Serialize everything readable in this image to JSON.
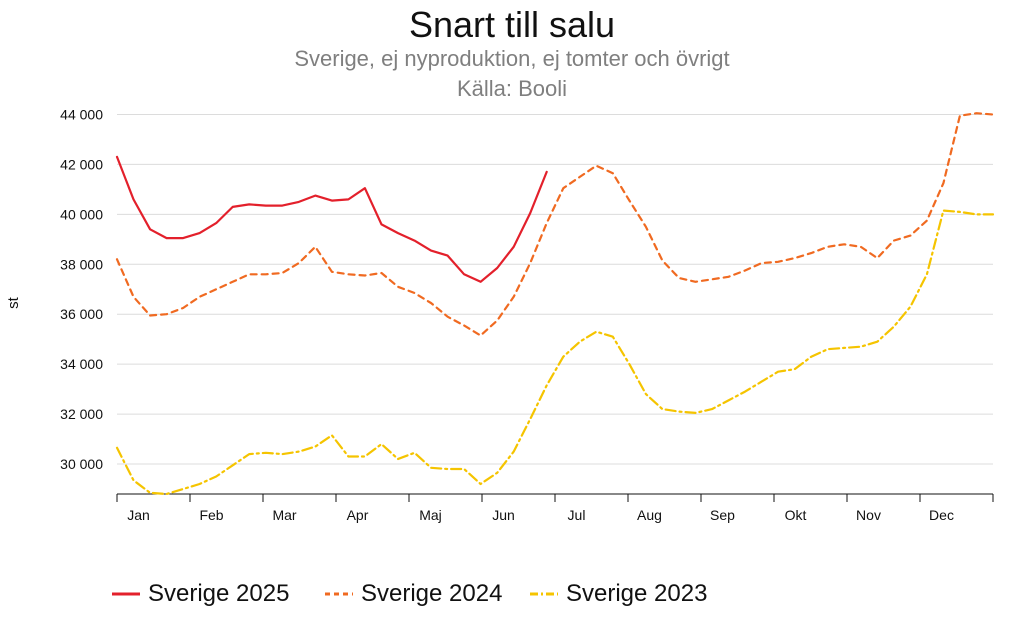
{
  "chart_data": {
    "type": "line",
    "title": "Snart till salu",
    "subtitle": "Sverige, ej nyproduktion, ej tomter och övrigt",
    "source": "Källa: Booli",
    "ylabel": "st",
    "ylim": [
      28800,
      44100
    ],
    "yticks": [
      30000,
      32000,
      34000,
      36000,
      38000,
      40000,
      42000,
      44000
    ],
    "ytick_labels": [
      "30 000",
      "32 000",
      "34 000",
      "36 000",
      "38 000",
      "40 000",
      "42 000",
      "44 000"
    ],
    "xlim": [
      0,
      53
    ],
    "month_labels": [
      "Jan",
      "Feb",
      "Mar",
      "Apr",
      "Maj",
      "Jun",
      "Jul",
      "Aug",
      "Sep",
      "Okt",
      "Nov",
      "Dec"
    ],
    "grid": "horizontal",
    "legend_position": "bottom",
    "series": [
      {
        "name": "Sverige 2025",
        "color": "#e3202b",
        "style": "solid",
        "x": [
          0,
          1,
          2,
          3,
          4,
          5,
          6,
          7,
          8,
          9,
          10,
          11,
          12,
          13,
          14,
          15,
          16,
          17,
          18,
          19,
          20,
          21,
          22,
          23,
          24,
          25,
          26
        ],
        "values": [
          42300,
          40600,
          39400,
          39050,
          39050,
          39250,
          39650,
          40300,
          40400,
          40350,
          40350,
          40500,
          40750,
          40550,
          40600,
          41050,
          39600,
          39250,
          38950,
          38550,
          38350,
          37600,
          37300,
          37850,
          38700,
          40050,
          41700
        ]
      },
      {
        "name": "Sverige 2024",
        "color": "#f06a21",
        "style": "dashed",
        "x": [
          0,
          1,
          2,
          3,
          4,
          5,
          6,
          7,
          8,
          9,
          10,
          11,
          12,
          13,
          14,
          15,
          16,
          17,
          18,
          19,
          20,
          21,
          22,
          23,
          24,
          25,
          26,
          27,
          28,
          29,
          30,
          31,
          32,
          33,
          34,
          35,
          36,
          37,
          38,
          39,
          40,
          41,
          42,
          43,
          44,
          45,
          46,
          47,
          48,
          49,
          50,
          51,
          52,
          53
        ],
        "values": [
          38200,
          36700,
          35950,
          36000,
          36250,
          36700,
          37000,
          37300,
          37600,
          37600,
          37650,
          38050,
          38700,
          37700,
          37600,
          37550,
          37650,
          37100,
          36850,
          36450,
          35900,
          35550,
          35150,
          35750,
          36700,
          38050,
          39650,
          41050,
          41500,
          41950,
          41650,
          40550,
          39500,
          38150,
          37450,
          37300,
          37400,
          37500,
          37750,
          38050,
          38100,
          38250,
          38450,
          38700,
          38800,
          38700,
          38250,
          38950,
          39150,
          39750,
          41250,
          43950,
          44050,
          44000
        ]
      },
      {
        "name": "Sverige 2023",
        "color": "#f5c400",
        "style": "dashdot",
        "x": [
          0,
          1,
          2,
          3,
          4,
          5,
          6,
          7,
          8,
          9,
          10,
          11,
          12,
          13,
          14,
          15,
          16,
          17,
          18,
          19,
          20,
          21,
          22,
          23,
          24,
          25,
          26,
          27,
          28,
          29,
          30,
          31,
          32,
          33,
          34,
          35,
          36,
          37,
          38,
          39,
          40,
          41,
          42,
          43,
          44,
          45,
          46,
          47,
          48,
          49,
          50,
          51,
          52,
          53
        ],
        "values": [
          30650,
          29350,
          28850,
          28800,
          29000,
          29200,
          29500,
          29950,
          30400,
          30450,
          30400,
          30500,
          30700,
          31150,
          30300,
          30300,
          30800,
          30200,
          30450,
          29850,
          29800,
          29800,
          29200,
          29650,
          30500,
          31800,
          33150,
          34300,
          34900,
          35300,
          35100,
          34000,
          32800,
          32200,
          32100,
          32050,
          32200,
          32550,
          32900,
          33300,
          33700,
          33800,
          34300,
          34600,
          34650,
          34700,
          34900,
          35500,
          36300,
          37600,
          40150,
          40100,
          40000,
          40000
        ]
      }
    ]
  }
}
